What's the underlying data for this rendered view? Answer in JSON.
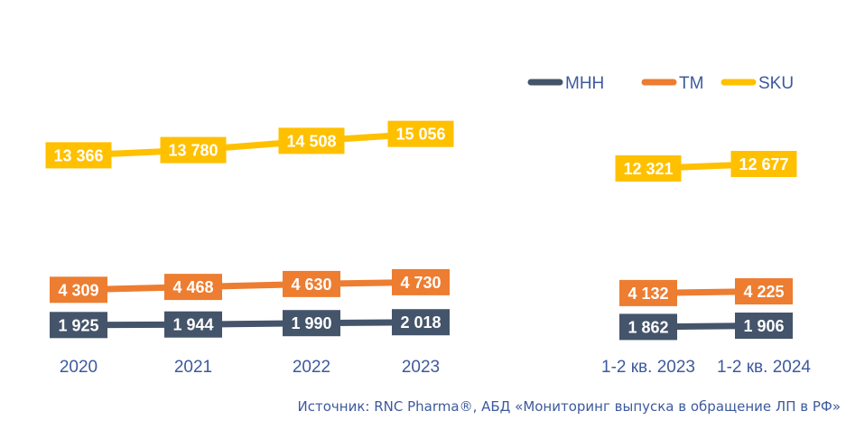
{
  "chart_data": {
    "type": "line",
    "groups": [
      {
        "categories": [
          "2020",
          "2021",
          "2022",
          "2023"
        ]
      },
      {
        "categories": [
          "1-2 кв. 2023",
          "1-2 кв. 2024"
        ]
      }
    ],
    "series": [
      {
        "name": "МНН",
        "color": "#44546a",
        "label_text_color": "#ffffff",
        "groups": [
          [
            "1 925",
            "1 944",
            "1 990",
            "2 018"
          ],
          [
            "1 862",
            "1 906"
          ]
        ],
        "values": [
          [
            1925,
            1944,
            1990,
            2018
          ],
          [
            1862,
            1906
          ]
        ]
      },
      {
        "name": "ТМ",
        "color": "#ed7d31",
        "label_text_color": "#ffffff",
        "groups": [
          [
            "4 309",
            "4 468",
            "4 630",
            "4 730"
          ],
          [
            "4 132",
            "4 225"
          ]
        ],
        "values": [
          [
            4309,
            4468,
            4630,
            4730
          ],
          [
            4132,
            4225
          ]
        ]
      },
      {
        "name": "SKU",
        "color": "#ffc000",
        "label_text_color": "#ffffff",
        "groups": [
          [
            "13 366",
            "13 780",
            "14 508",
            "15 056"
          ],
          [
            "12 321",
            "12 677"
          ]
        ],
        "values": [
          [
            13366,
            13780,
            14508,
            15056
          ],
          [
            12321,
            12677
          ]
        ]
      }
    ],
    "legend_position": "top-right",
    "grid": false
  },
  "source": "Источник: RNC Pharma®, АБД «Мониторинг выпуска в обращение ЛП в РФ»"
}
